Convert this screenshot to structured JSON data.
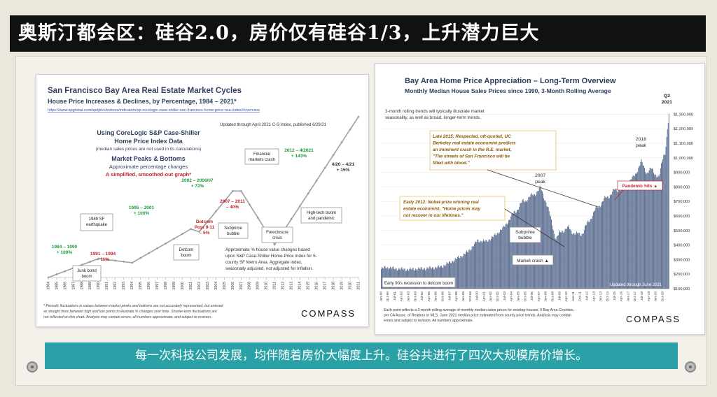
{
  "banner": {
    "title": "奥斯汀都会区：硅谷2.0，房价仅有硅谷1/3，上升潜力巨大"
  },
  "caption": {
    "text": "每一次科技公司发展，均伴随着房价大幅度上升。硅谷共进行了四次大规模房价增长。"
  },
  "colors": {
    "banner_bg": "#111111",
    "caption_bg": "#2aa1a6",
    "green": "#1a9a3a",
    "red": "#c0242b",
    "navy": "#2f3e5d",
    "bar": "#55698c"
  },
  "chart_data": [
    {
      "type": "line",
      "title": "San Francisco Bay Area Real Estate Market Cycles",
      "subtitle": "House Price Increases & Declines, by Percentage, 1984 – 2021*",
      "url": "https://www.spglobal.com/spdji/en/indices/indicators/sp-corelogic-case-shiller-san-francisco-home-price-nsa-index/#overview",
      "updated": "Updated through April 2021 C-S Index, published 6/29/21",
      "method": [
        "Using CoreLogic S&P Case-Shiller",
        "Home Price Index Data",
        "(median sales prices are not used in its calculations)"
      ],
      "peaks_heading": [
        "Market Peaks & Bottoms",
        "Approximate percentage changes"
      ],
      "smoothed_note": "A simplified, smoothed-out graph*",
      "x": [
        "1984",
        "1990",
        "1994",
        "2001",
        "2002",
        "2006",
        "2007",
        "2011",
        "2012",
        "2021"
      ],
      "points": [
        {
          "x": 1984,
          "y": 0
        },
        {
          "x": 1990,
          "y": 100
        },
        {
          "x": 1994,
          "y": 78
        },
        {
          "x": 2001,
          "y": 256
        },
        {
          "x": 2002,
          "y": 242
        },
        {
          "x": 2006,
          "y": 457
        },
        {
          "x": 2007,
          "y": 457
        },
        {
          "x": 2011,
          "y": 174
        },
        {
          "x": 2021,
          "y": 850
        }
      ],
      "x_ticks": [
        "1984",
        "1985",
        "1986",
        "1987",
        "1988",
        "1989",
        "1990",
        "1991",
        "1992",
        "1993",
        "1994",
        "1995",
        "1996",
        "1997",
        "1998",
        "1999",
        "2000",
        "2001",
        "2002",
        "2003",
        "2004",
        "2005",
        "2006",
        "2007",
        "2008",
        "2009",
        "2010",
        "2011",
        "2012",
        "2013",
        "2014",
        "2015",
        "2016",
        "2017",
        "2018",
        "2019",
        "2020",
        "2021"
      ],
      "labels": [
        {
          "year": 1987,
          "text": [
            "1984 – 1990",
            "+ 100%"
          ],
          "color": "green"
        },
        {
          "year": 1992.5,
          "text": [
            "1991 – 1994",
            "– 11%"
          ],
          "color": "red"
        },
        {
          "year": 1998,
          "text": [
            "1995 – 2001",
            "+ 100%"
          ],
          "color": "green"
        },
        {
          "year": 2004,
          "text": [
            "2002 – 2006/07",
            "+ 72%"
          ],
          "color": "green"
        },
        {
          "year": 2001.5,
          "text": [
            "Dotcom",
            "Pop/ 9-11",
            "– 5%"
          ],
          "color": "red"
        },
        {
          "year": 2009,
          "text": [
            "2007 – 2011",
            "– 40%"
          ],
          "color": "red"
        },
        {
          "year": 2016.5,
          "text": [
            "2012 – 4/2021",
            "+ 143%"
          ],
          "color": "green"
        },
        {
          "year": 2020,
          "text": [
            "4/20 – 4/21",
            "+ 15%"
          ],
          "color": "navy"
        }
      ],
      "boxes": [
        {
          "text": [
            "1989 SF",
            "earthquake"
          ]
        },
        {
          "text": [
            "Junk bond",
            "boom"
          ]
        },
        {
          "text": [
            "Dotcom",
            "boom"
          ]
        },
        {
          "text": [
            "Subprime",
            "bubble"
          ]
        },
        {
          "text": [
            "Financial",
            "markets crash"
          ]
        },
        {
          "text": [
            "Foreclosure",
            "crisis"
          ]
        },
        {
          "text": [
            "High-tech boom",
            "and pandemic"
          ]
        }
      ],
      "note": [
        "Approximate % house value changes based",
        "upon S&P Case-Shiller Home-Price Index for 5-",
        "county SF Metro Area. Aggregate index,",
        "seasonally adjusted, not adjusted for inflation."
      ],
      "footnote": [
        "* Periodic fluctuations in values between market peaks and bottoms are not accurately represented, but entered",
        "as straight lines between high and low points to illustrate % changes over time. Shorter-term fluctuations are",
        "not reflected on this chart. Analysis may contain errors, all numbers approximate, and subject to revision."
      ],
      "brand": "COMPASS"
    },
    {
      "type": "bar",
      "title": "Bay Area Home Price Appreciation – Long-Term Overview",
      "subtitle": "Monthly Median House Sales Prices since 1990, 3-Month Rolling Average",
      "intro": [
        "3-month rolling trends will typically illustrate market",
        "seasonality, as well as broad, longer-term trends."
      ],
      "anchors": [
        {
          "x": 1990.0,
          "y": 235000
        },
        {
          "x": 1990.5,
          "y": 248000
        },
        {
          "x": 1991.5,
          "y": 238000
        },
        {
          "x": 1993.0,
          "y": 232000
        },
        {
          "x": 1995.0,
          "y": 240000
        },
        {
          "x": 1996.5,
          "y": 250000
        },
        {
          "x": 1997.5,
          "y": 280000
        },
        {
          "x": 1998.5,
          "y": 315000
        },
        {
          "x": 1999.5,
          "y": 355000
        },
        {
          "x": 2000.5,
          "y": 430000
        },
        {
          "x": 2001.5,
          "y": 425000
        },
        {
          "x": 2002.5,
          "y": 470000
        },
        {
          "x": 2003.5,
          "y": 530000
        },
        {
          "x": 2004.5,
          "y": 620000
        },
        {
          "x": 2005.5,
          "y": 700000
        },
        {
          "x": 2006.5,
          "y": 740000
        },
        {
          "x": 2007.4,
          "y": 790000
        },
        {
          "x": 2008.0,
          "y": 700000
        },
        {
          "x": 2008.6,
          "y": 560000
        },
        {
          "x": 2009.1,
          "y": 440000
        },
        {
          "x": 2009.7,
          "y": 500000
        },
        {
          "x": 2010.5,
          "y": 515000
        },
        {
          "x": 2011.3,
          "y": 470000
        },
        {
          "x": 2012.0,
          "y": 485000
        },
        {
          "x": 2012.8,
          "y": 580000
        },
        {
          "x": 2013.6,
          "y": 660000
        },
        {
          "x": 2014.5,
          "y": 720000
        },
        {
          "x": 2015.5,
          "y": 775000
        },
        {
          "x": 2016.5,
          "y": 800000
        },
        {
          "x": 2017.5,
          "y": 860000
        },
        {
          "x": 2018.4,
          "y": 970000
        },
        {
          "x": 2019.0,
          "y": 900000
        },
        {
          "x": 2019.5,
          "y": 920000
        },
        {
          "x": 2020.0,
          "y": 890000
        },
        {
          "x": 2020.35,
          "y": 860000
        },
        {
          "x": 2020.8,
          "y": 1020000
        },
        {
          "x": 2021.0,
          "y": 1040000
        },
        {
          "x": 2021.45,
          "y": 1310000
        }
      ],
      "ylim": [
        100000,
        1350000
      ],
      "y_ticks": [
        "$100,000",
        "$200,000",
        "$300,000",
        "$400,000",
        "$500,000",
        "$600,000",
        "$700,000",
        "$800,000",
        "$900,000",
        "$1,000,000",
        "$1,100,000",
        "$1,200,000",
        "$1,300,000"
      ],
      "x_ticks": [
        "Jan-90",
        "Oct-90",
        "Jul-91",
        "Apr-92",
        "Jan-93",
        "Oct-93",
        "Jul-94",
        "Apr-95",
        "Jan-96",
        "Oct-96",
        "Jul-97",
        "Apr-98",
        "Jan-99",
        "Oct-99",
        "Jul-00",
        "Apr-01",
        "Jan-02",
        "Oct-02",
        "Jul-03",
        "Apr-04",
        "Jan-05",
        "Oct-05",
        "Jul-06",
        "Apr-07",
        "Jan-08",
        "Oct-08",
        "Jul-09",
        "Apr-10",
        "Jan-11",
        "Oct-11",
        "Jul-12",
        "Apr-13",
        "Jan-14",
        "Oct-14",
        "Jul-15",
        "Apr-16",
        "Jan-17",
        "Oct-17",
        "Jul-18",
        "Apr-19",
        "Jan-20",
        "Oct-20"
      ],
      "peak_labels": [
        {
          "x": 2007.4,
          "text": [
            "2007",
            "peak"
          ]
        },
        {
          "x": 2018.4,
          "text": [
            "2018",
            "peak"
          ]
        },
        {
          "x": 2021.45,
          "text": [
            "Q2",
            "2021"
          ]
        }
      ],
      "quote_2015": [
        "Late 2015: Respected, oft-quoted, UC",
        "Berkeley real estate economist predicts",
        "an imminent crash in the R.E. market,",
        "\"The streets of San Francisco will be",
        "filled with blood.\""
      ],
      "quote_2012": [
        "Early 2012: Nobel-prize winning real",
        "estate economist, \"Home prices may",
        "not recover in our lifetimes.\""
      ],
      "callouts": {
        "subprime": [
          "Subprime",
          "bubble"
        ],
        "crash": "Market crash ▲",
        "dotcom": "Early 90's recession to dotcom boom",
        "pandemic": "Pandemic hits ▲",
        "updated": "Updated through June 2021"
      },
      "footnote": [
        "Each point reflects a 3-month rolling average of monthly median sales prices for existing houses, 9 Bay Area Counties,",
        "per CA Assoc. of Realtors or MLS. June 2021 median price estimated from county price trends. Analysis may contain",
        "errors and subject to revision. All numbers approximate."
      ],
      "brand": "COMPASS"
    }
  ]
}
